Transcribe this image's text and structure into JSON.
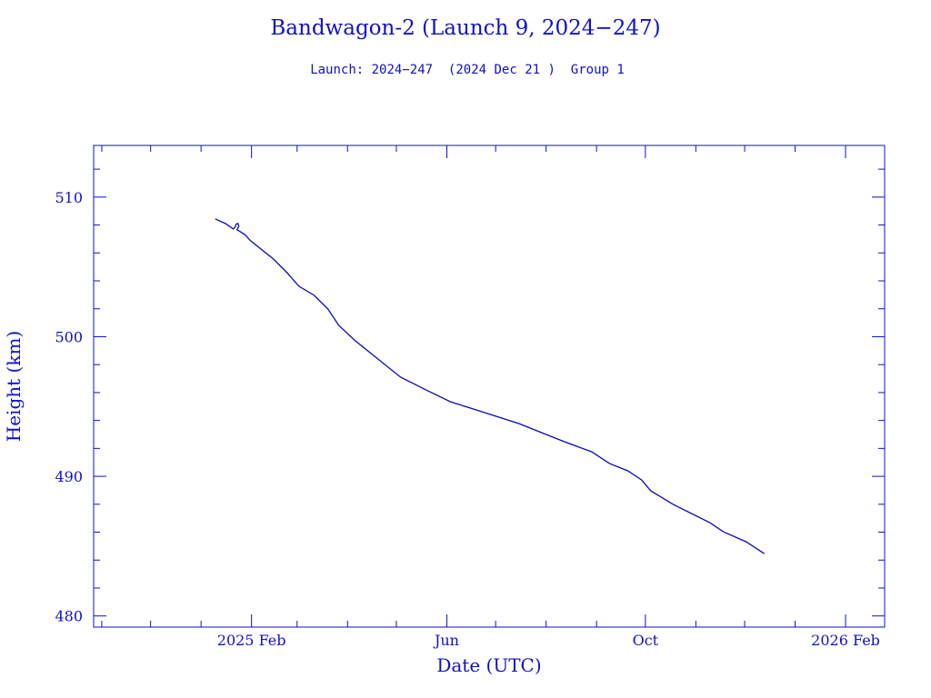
{
  "chart_data": {
    "type": "line",
    "title": "Bandwagon-2 (Launch 9, 2024−247)",
    "subtitle": "Launch: 2024−247  (2024 Dec 21 )  Group 1",
    "xlabel": "Date (UTC)",
    "ylabel": "Height (km)",
    "x_units": "days since 2025 Feb 1",
    "xlim": [
      -97,
      389
    ],
    "ylim": [
      479.2,
      513.7
    ],
    "yticks": [
      480,
      490,
      500,
      510
    ],
    "ytick_labels": [
      "480",
      "490",
      "500",
      "510"
    ],
    "yminor_step": 2,
    "xticks": [
      0,
      120,
      242,
      365
    ],
    "xtick_labels": [
      "2025 Feb",
      "Jun",
      "Oct",
      "2026 Feb"
    ],
    "xminor": [
      -92,
      -62,
      -31,
      0,
      28,
      59,
      89,
      120,
      150,
      181,
      212,
      242,
      273,
      303,
      334,
      365
    ],
    "grid": false,
    "color": "#0a0ab4",
    "series": [
      {
        "name": "Height",
        "x": [
          -22.3,
          -16,
          -11.2,
          -10.1,
          -9.5,
          -8.4,
          -7.8,
          -8.9,
          -7.8,
          -4,
          -0.6,
          13.4,
          21.8,
          29.1,
          38.5,
          46.9,
          53.6,
          63.7,
          77.7,
          91.6,
          108.4,
          122.3,
          136.3,
          164.2,
          192.2,
          208.9,
          220.1,
          231.3,
          239.7,
          245.3,
          259.2,
          281.6,
          289.9,
          303.9,
          315.1
        ],
        "y": [
          508.44,
          508.1,
          507.72,
          507.85,
          508.05,
          508.11,
          507.92,
          507.65,
          507.59,
          507.3,
          506.87,
          505.57,
          504.59,
          503.62,
          502.96,
          501.99,
          500.81,
          499.71,
          498.4,
          497.1,
          496.12,
          495.34,
          494.82,
          493.78,
          492.48,
          491.76,
          490.91,
          490.39,
          489.74,
          488.96,
          487.98,
          486.68,
          486.03,
          485.31,
          484.46
        ]
      }
    ]
  }
}
